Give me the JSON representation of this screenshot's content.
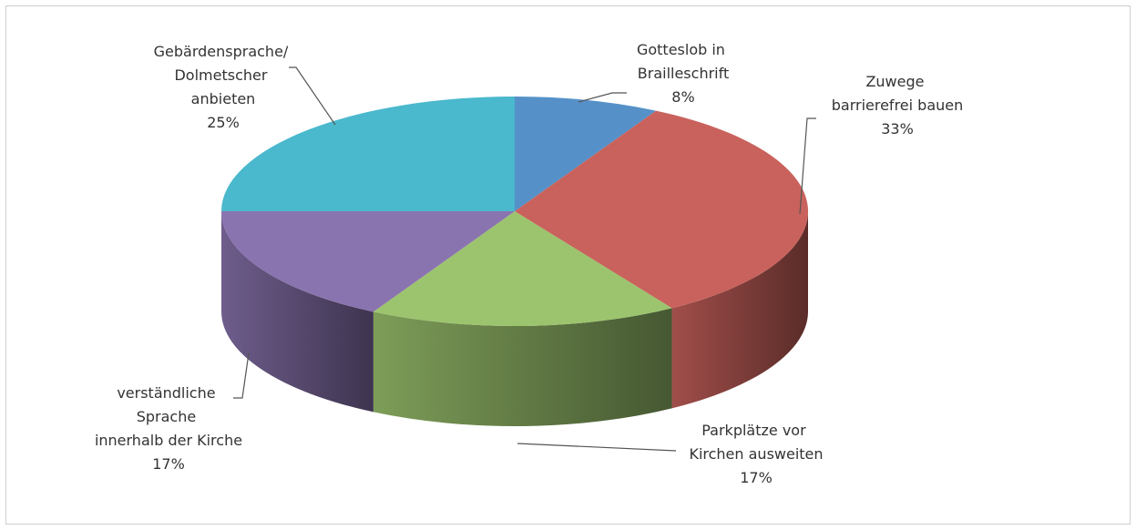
{
  "chart_data": {
    "type": "pie",
    "categories": [
      "Gotteslob in Brailleschrift",
      "Zuwege barrierefrei bauen",
      "Parkplätze vor Kirchen ausweiten",
      "verständliche Sprache innerhalb der Kirche",
      "Gebärdensprache/ Dolmetscher anbieten"
    ],
    "values": [
      8,
      33,
      17,
      17,
      25
    ],
    "value_labels": [
      "8%",
      "33%",
      "17%",
      "17%",
      "25%"
    ],
    "colors": [
      "#5591c8",
      "#c9625c",
      "#9cc46e",
      "#8a74af",
      "#4ab8cd"
    ]
  }
}
